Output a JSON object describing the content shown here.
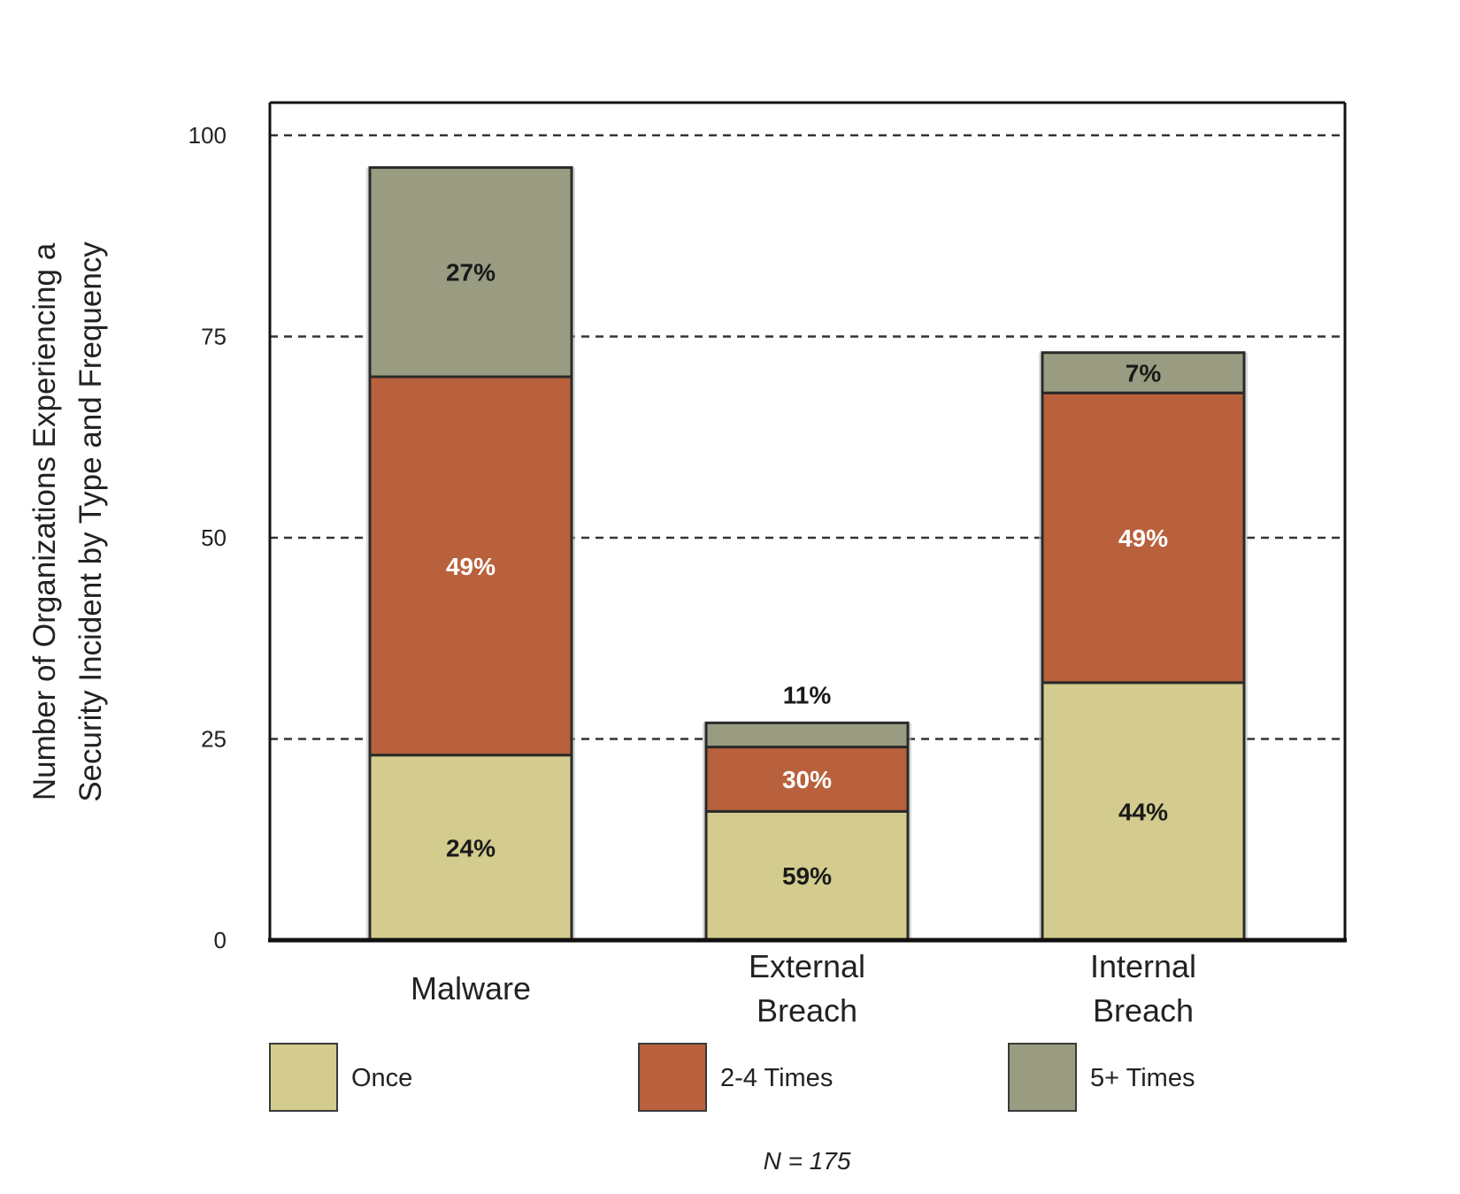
{
  "chart_data": {
    "type": "bar",
    "stacked": true,
    "ylabel_lines": [
      "Number of Organizations Experiencing a",
      "Security Incident by Type and Frequency"
    ],
    "ylim": [
      0,
      100
    ],
    "yticks": [
      "0",
      "25",
      "50",
      "75",
      "100"
    ],
    "grid": "dashed horizontal at 25, 50, 75, 100",
    "categories": [
      {
        "lines": [
          "Malware"
        ]
      },
      {
        "lines": [
          "External",
          "Breach"
        ]
      },
      {
        "lines": [
          "Internal",
          "Breach"
        ]
      }
    ],
    "series": [
      {
        "name": "Once",
        "color": "#d3cc8e",
        "label_color": "#1a1a1a",
        "values": [
          23,
          16,
          32
        ],
        "labels": [
          "24%",
          "59%",
          "44%"
        ]
      },
      {
        "name": "2-4 Times",
        "color": "#b8613c",
        "label_color": "#ffffff",
        "values": [
          47,
          8,
          36
        ],
        "labels": [
          "49%",
          "30%",
          "49%"
        ]
      },
      {
        "name": "5+ Times",
        "color": "#9a9c82",
        "label_color": "#1a1a1a",
        "values": [
          26,
          3,
          5
        ],
        "labels": [
          "27%",
          "11%",
          "7%"
        ]
      }
    ],
    "legend_placement": "bottom",
    "note": "N = 175"
  }
}
